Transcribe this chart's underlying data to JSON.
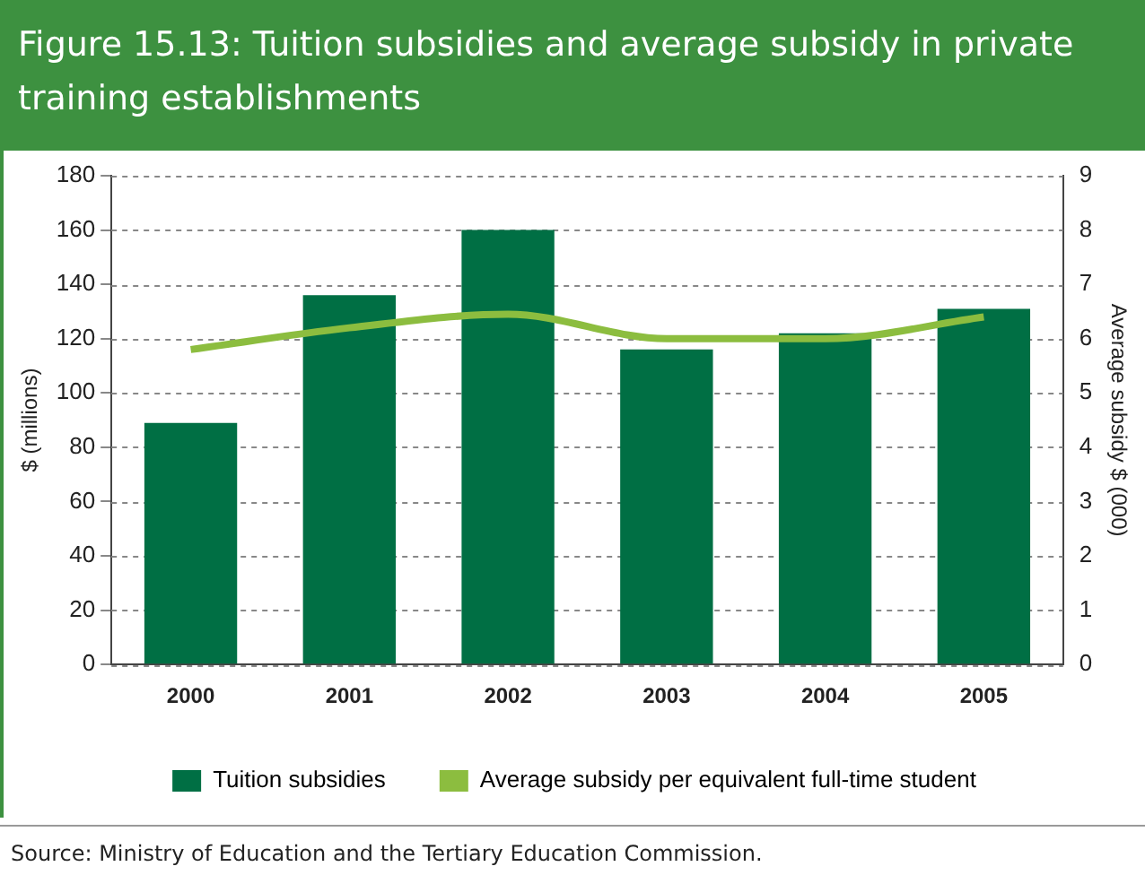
{
  "chart_data": {
    "type": "bar",
    "title": "Figure 15.13: Tuition subsidies and average subsidy in private training establishments",
    "ylabel": "$ (millions)",
    "y2label": "Average subsidy $ (000)",
    "categories": [
      "2000",
      "2001",
      "2002",
      "2003",
      "2004",
      "2005"
    ],
    "series": [
      {
        "name": "Tuition subsidies",
        "color": "#006f44",
        "values": [
          89,
          136,
          160,
          116,
          122,
          131
        ]
      },
      {
        "name": "Average subsidy per equivalent full-time student",
        "type": "line",
        "axis": "y2",
        "color": "#8cbd3f",
        "values": [
          5.8,
          6.2,
          6.45,
          6.0,
          6.0,
          6.4
        ]
      }
    ],
    "ylim": [
      0,
      180
    ],
    "yticks": [
      0,
      20,
      40,
      60,
      80,
      100,
      120,
      140,
      160,
      180
    ],
    "y2lim": [
      0,
      9
    ],
    "y2ticks": [
      0,
      1,
      2,
      3,
      4,
      5,
      6,
      7,
      8,
      9
    ],
    "grid": "y",
    "legend": "bottom",
    "marker": "none",
    "annotations": [
      "Source: Ministry of Education and the Tertiary Education Commission."
    ]
  }
}
